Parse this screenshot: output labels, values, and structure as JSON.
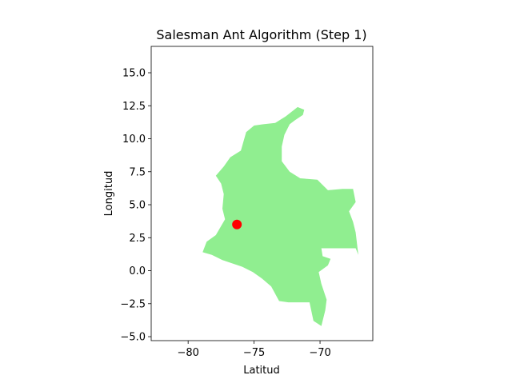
{
  "chart_data": {
    "type": "scatter",
    "title": "Salesman Ant Algorithm (Step 1)",
    "xlabel": "Latitud",
    "ylabel": "Longitud",
    "xlim": [
      -82.8,
      -66.0
    ],
    "ylim": [
      -5.3,
      17.0
    ],
    "xticks": [
      {
        "value": -80,
        "label": "−80"
      },
      {
        "value": -75,
        "label": "−75"
      },
      {
        "value": -70,
        "label": "−70"
      }
    ],
    "yticks": [
      {
        "value": -5.0,
        "label": "−5.0"
      },
      {
        "value": -2.5,
        "label": "−2.5"
      },
      {
        "value": 0.0,
        "label": "0.0"
      },
      {
        "value": 2.5,
        "label": "2.5"
      },
      {
        "value": 5.0,
        "label": "5.0"
      },
      {
        "value": 7.5,
        "label": "7.5"
      },
      {
        "value": 10.0,
        "label": "10.0"
      },
      {
        "value": 12.5,
        "label": "12.5"
      },
      {
        "value": 15.0,
        "label": "15.0"
      }
    ],
    "grid": false,
    "land_color": "#90ee90",
    "point_color": "#ff0000",
    "points": [
      {
        "x": -76.3,
        "y": 3.5
      }
    ],
    "country_outline": [
      [
        -71.7,
        12.4
      ],
      [
        -71.2,
        12.2
      ],
      [
        -71.3,
        11.8
      ],
      [
        -71.9,
        11.4
      ],
      [
        -72.3,
        11.1
      ],
      [
        -72.7,
        10.3
      ],
      [
        -72.9,
        9.4
      ],
      [
        -72.9,
        8.3
      ],
      [
        -72.3,
        7.5
      ],
      [
        -71.5,
        7.0
      ],
      [
        -70.2,
        6.9
      ],
      [
        -69.4,
        6.1
      ],
      [
        -68.3,
        6.2
      ],
      [
        -67.5,
        6.2
      ],
      [
        -67.3,
        5.2
      ],
      [
        -67.8,
        4.5
      ],
      [
        -67.5,
        3.7
      ],
      [
        -67.3,
        2.9
      ],
      [
        -67.1,
        1.2
      ],
      [
        -67.3,
        1.7
      ],
      [
        -69.9,
        1.7
      ],
      [
        -69.8,
        1.1
      ],
      [
        -69.2,
        0.9
      ],
      [
        -69.4,
        0.4
      ],
      [
        -70.1,
        -0.1
      ],
      [
        -69.9,
        -1.0
      ],
      [
        -69.5,
        -2.2
      ],
      [
        -69.6,
        -3.0
      ],
      [
        -69.9,
        -4.2
      ],
      [
        -70.5,
        -3.8
      ],
      [
        -70.8,
        -2.4
      ],
      [
        -72.4,
        -2.4
      ],
      [
        -73.1,
        -2.3
      ],
      [
        -73.7,
        -1.2
      ],
      [
        -74.4,
        -0.6
      ],
      [
        -75.1,
        -0.1
      ],
      [
        -75.9,
        0.3
      ],
      [
        -77.4,
        0.8
      ],
      [
        -78.2,
        1.2
      ],
      [
        -78.9,
        1.4
      ],
      [
        -78.6,
        2.2
      ],
      [
        -77.9,
        2.7
      ],
      [
        -77.2,
        3.9
      ],
      [
        -77.4,
        4.7
      ],
      [
        -77.3,
        5.8
      ],
      [
        -77.5,
        6.6
      ],
      [
        -77.9,
        7.2
      ],
      [
        -77.3,
        7.9
      ],
      [
        -76.8,
        8.6
      ],
      [
        -76.0,
        9.1
      ],
      [
        -75.6,
        10.5
      ],
      [
        -75.0,
        11.0
      ],
      [
        -74.3,
        11.1
      ],
      [
        -73.4,
        11.2
      ],
      [
        -72.6,
        11.7
      ]
    ]
  }
}
